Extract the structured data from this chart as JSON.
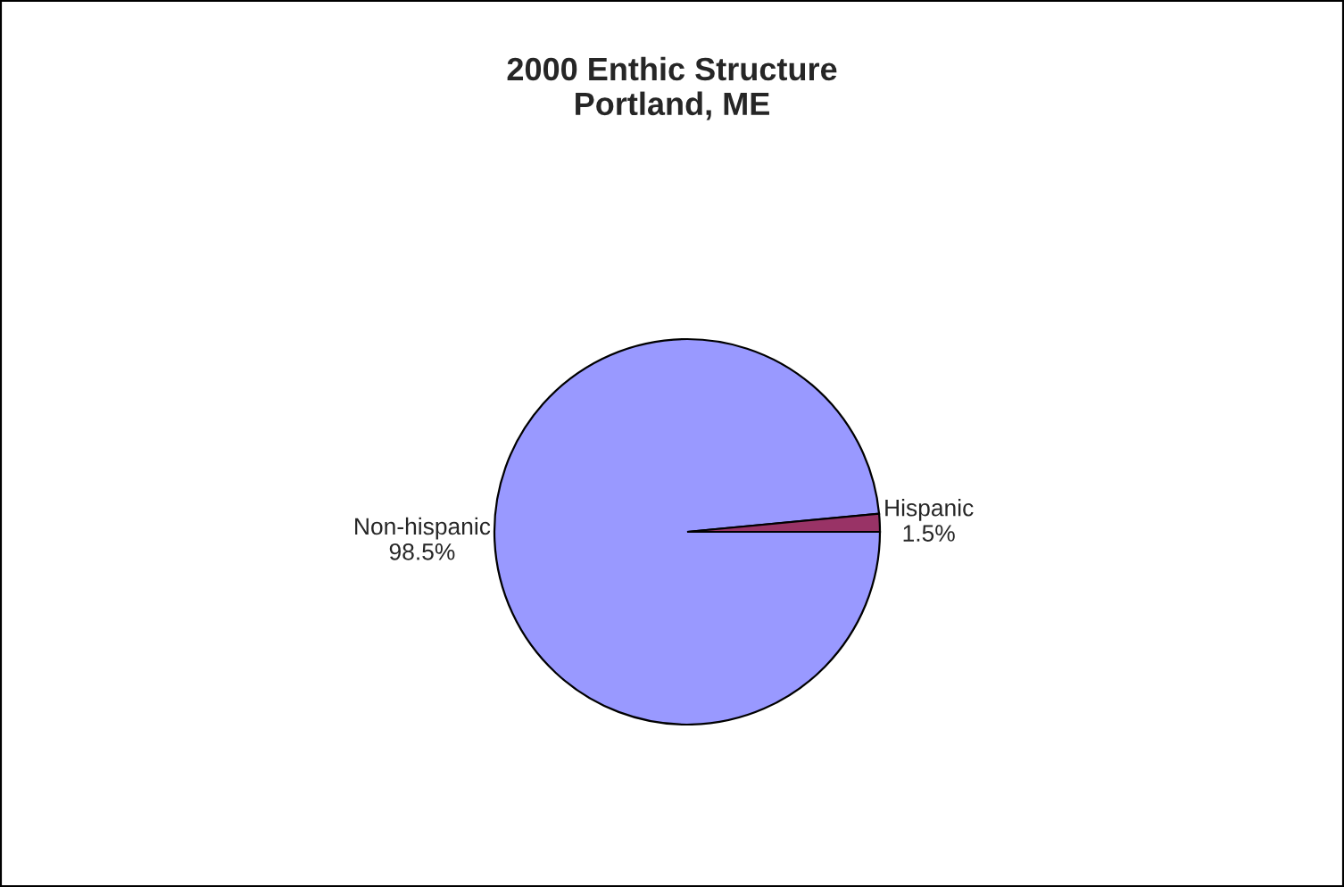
{
  "chart_data": {
    "type": "pie",
    "title": "2000 Enthic Structure\nPortland, ME",
    "categories": [
      "Non-hispanic",
      "Hispanic"
    ],
    "values": [
      98.5,
      1.5
    ],
    "value_labels": [
      "98.5%",
      "1.5%"
    ],
    "colors": [
      "#9999ff",
      "#993366"
    ]
  }
}
